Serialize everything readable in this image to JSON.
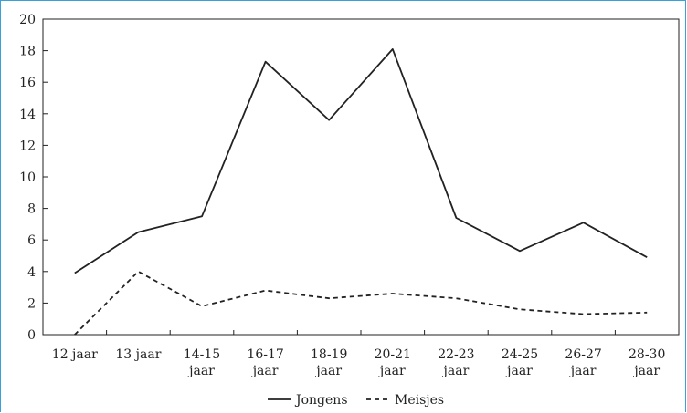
{
  "chart_data": {
    "type": "line",
    "categories": [
      [
        "12 jaar"
      ],
      [
        "13 jaar"
      ],
      [
        "14-15",
        "jaar"
      ],
      [
        "16-17",
        "jaar"
      ],
      [
        "18-19",
        "jaar"
      ],
      [
        "20-21",
        "jaar"
      ],
      [
        "22-23",
        "jaar"
      ],
      [
        "24-25",
        "jaar"
      ],
      [
        "26-27",
        "jaar"
      ],
      [
        "28-30",
        "jaar"
      ]
    ],
    "series": [
      {
        "name": "Jongens",
        "style": "solid",
        "values": [
          3.9,
          6.5,
          7.5,
          17.3,
          13.6,
          18.1,
          7.4,
          5.3,
          7.1,
          4.9
        ]
      },
      {
        "name": "Meisjes",
        "style": "dashed",
        "values": [
          0.0,
          4.0,
          1.8,
          2.8,
          2.3,
          2.6,
          2.3,
          1.6,
          1.3,
          1.4
        ]
      }
    ],
    "ylim": [
      0,
      20
    ],
    "yticks": [
      0,
      2,
      4,
      6,
      8,
      10,
      12,
      14,
      16,
      18,
      20
    ],
    "grid": false,
    "legend_position": "bottom-center",
    "colors": {
      "line": "#222222",
      "axis": "#222222",
      "frame": "#3aa0d8"
    }
  }
}
